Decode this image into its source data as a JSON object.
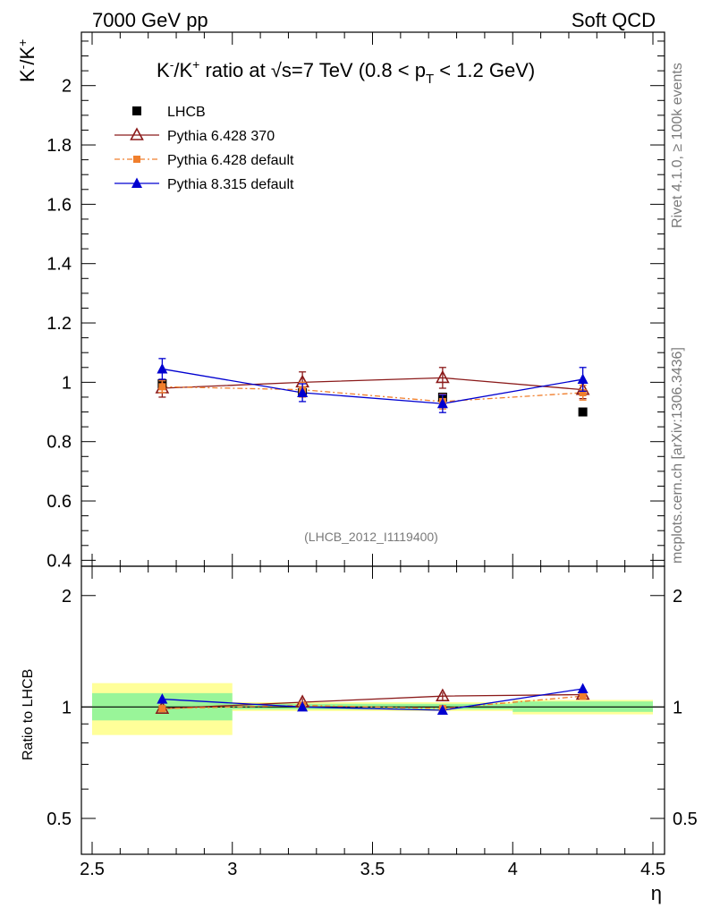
{
  "header": {
    "left": "7000 GeV pp",
    "right": "Soft QCD"
  },
  "side": {
    "rivet": "Rivet 4.1.0, ≥ 100k events",
    "mcplots": "mcplots.cern.ch [arXiv:1306.3436]"
  },
  "chart_data": {
    "type": "scatter",
    "title_pre": "K",
    "title_mid": "/K",
    "title_tail": " ratio at √s=7 TeV (0.8 < p",
    "title_sub": "T",
    "title_end": " < 1.2 GeV)",
    "analysis_tag": "(LHCB_2012_I1119400)",
    "ylabel_main": "K",
    "ylabel_main_mid": "/K",
    "ylabel_ratio": "Ratio to LHCB",
    "xlabel": "η",
    "xlim": [
      2.5,
      4.5
    ],
    "ylim_main": [
      0.38,
      2.18
    ],
    "ylim_ratio": [
      0.4,
      2.4
    ],
    "x_ticks": [
      "2.5",
      "3",
      "3.5",
      "4",
      "4.5"
    ],
    "y_ticks_main": [
      "0.4",
      "0.6",
      "0.8",
      "1",
      "1.2",
      "1.4",
      "1.6",
      "1.8",
      "2"
    ],
    "y_ticks_ratio": [
      "0.5",
      "1",
      "2"
    ],
    "x": [
      2.75,
      3.25,
      3.75,
      4.25
    ],
    "series": [
      {
        "name": "LHCB",
        "color": "#000000",
        "marker": "square",
        "values": [
          0.995,
          0.965,
          0.95,
          0.9
        ],
        "ratio": [
          1.0,
          1.0,
          1.0,
          1.0
        ],
        "band_inner": [
          [
            0.92,
            1.09
          ],
          [
            0.985,
            1.02
          ],
          [
            0.985,
            1.02
          ],
          [
            0.97,
            1.035
          ]
        ],
        "band_outer": [
          [
            0.84,
            1.16
          ],
          [
            0.975,
            1.03
          ],
          [
            0.975,
            1.03
          ],
          [
            0.955,
            1.045
          ]
        ]
      },
      {
        "name": "Pythia 6.428 370",
        "color": "#8b1a1a",
        "marker": "open-triangle",
        "values": [
          0.98,
          1.0,
          1.015,
          0.975
        ],
        "errors": [
          0.03,
          0.035,
          0.035,
          0.03
        ],
        "ratio": [
          0.99,
          1.03,
          1.07,
          1.08
        ],
        "ratio_errors": [
          0.02,
          0.025,
          0.025,
          0.025
        ]
      },
      {
        "name": "Pythia 6.428 default",
        "color": "#f07f2d",
        "marker": "square-small",
        "values": [
          0.985,
          0.975,
          0.935,
          0.965
        ],
        "errors": [
          0.02,
          0.025,
          0.025,
          0.025
        ],
        "ratio": [
          0.99,
          1.01,
          0.99,
          1.07
        ],
        "ratio_errors": [
          0.015,
          0.02,
          0.02,
          0.02
        ]
      },
      {
        "name": "Pythia 8.315 default",
        "color": "#0000d0",
        "marker": "triangle",
        "values": [
          1.045,
          0.965,
          0.928,
          1.01
        ],
        "errors": [
          0.035,
          0.03,
          0.03,
          0.04
        ],
        "ratio": [
          1.05,
          1.0,
          0.98,
          1.12
        ],
        "ratio_errors": [
          0.025,
          0.02,
          0.02,
          0.03
        ]
      }
    ]
  }
}
